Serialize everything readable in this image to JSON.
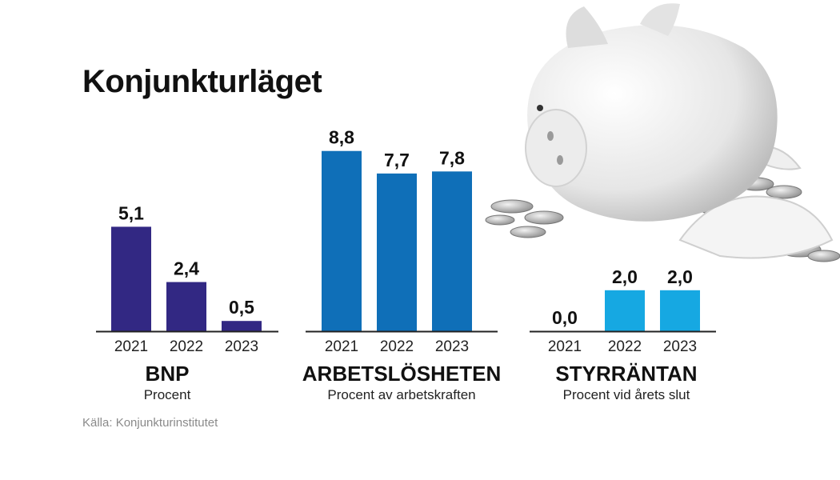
{
  "title": "Konjunkturläget",
  "source": "Källa: Konjunkturinstitutet",
  "colors": {
    "bnp": "#322883",
    "arbetsloshet": "#0f6fb8",
    "styrranta": "#16a8e2",
    "axis": "#222222"
  },
  "illustration": "piggy-bank-with-coins",
  "chart_data": [
    {
      "type": "bar",
      "title": "BNP",
      "subtitle": "Procent",
      "categories": [
        "2021",
        "2022",
        "2023"
      ],
      "values": [
        5.1,
        2.4,
        0.5
      ],
      "value_labels": [
        "5,1",
        "2,4",
        "0,5"
      ]
    },
    {
      "type": "bar",
      "title": "ARBETSLÖSHETEN",
      "subtitle": "Procent av arbetskraften",
      "categories": [
        "2021",
        "2022",
        "2023"
      ],
      "values": [
        8.8,
        7.7,
        7.8
      ],
      "value_labels": [
        "8,8",
        "7,7",
        "7,8"
      ]
    },
    {
      "type": "bar",
      "title": "STYRRÄNTAN",
      "subtitle": "Procent vid årets slut",
      "categories": [
        "2021",
        "2022",
        "2023"
      ],
      "values": [
        0.0,
        2.0,
        2.0
      ],
      "value_labels": [
        "0,0",
        "2,0",
        "2,0"
      ]
    }
  ]
}
